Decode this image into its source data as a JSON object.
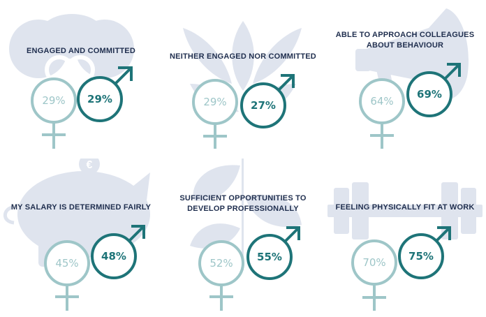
{
  "colors": {
    "female": "#9ec6c8",
    "male": "#1e7478",
    "title": "#1f2e4e",
    "background_icon": "#dfe4ee"
  },
  "panels": [
    {
      "title": "ENGAGED AND COMMITTED",
      "female": "29%",
      "male": "29%",
      "bg_icon": "rings-icon"
    },
    {
      "title": "NEITHER ENGAGED NOR COMMITTED",
      "female": "29%",
      "male": "27%",
      "bg_icon": "leaves-icon"
    },
    {
      "title": "ABLE TO APPROACH COLLEAGUES ABOUT BEHAVIOUR",
      "female": "64%",
      "male": "69%",
      "bg_icon": "megaphone-icon"
    },
    {
      "title": "MY SALARY IS DETERMINED FAIRLY",
      "female": "45%",
      "male": "48%",
      "bg_icon": "piggy-bank-icon",
      "bg_glyph": "€"
    },
    {
      "title": "SUFFICIENT OPPORTUNITIES TO DEVELOP PROFESSIONALLY",
      "female": "52%",
      "male": "55%",
      "bg_icon": "plant-icon"
    },
    {
      "title": "FEELING PHYSICALLY FIT AT WORK",
      "female": "70%",
      "male": "75%",
      "bg_icon": "dumbbell-icon"
    }
  ]
}
